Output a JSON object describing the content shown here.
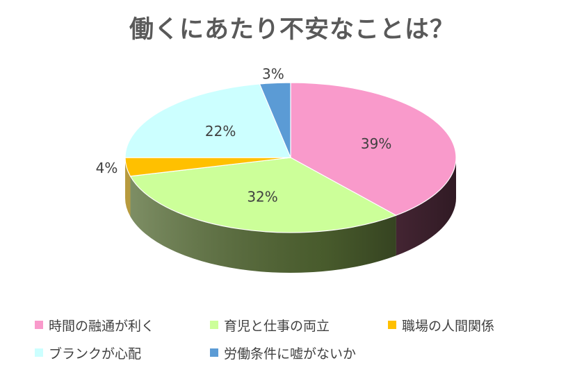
{
  "chart_data": {
    "type": "pie",
    "title": "働くにあたり不安なことは？",
    "categories": [
      "時間の融通が利く",
      "育児と仕事の両立",
      "職場の人間関係",
      "ブランクが心配",
      "労働条件に嘘がないか"
    ],
    "values": [
      39,
      32,
      4,
      22,
      3
    ],
    "labels": [
      "39%",
      "32%",
      "4%",
      "22%",
      "3%"
    ],
    "colors": [
      "#F99ACB",
      "#CCFF99",
      "#FFC000",
      "#CCFFFF",
      "#5B9BD5"
    ],
    "side_colors": [
      "#6B3A50",
      "#556B34",
      "#A07A00",
      "#7FA5A5",
      "#355F88"
    ],
    "start_angle_deg": 0,
    "direction": "clockwise",
    "style": "3d",
    "legend_position": "bottom"
  }
}
